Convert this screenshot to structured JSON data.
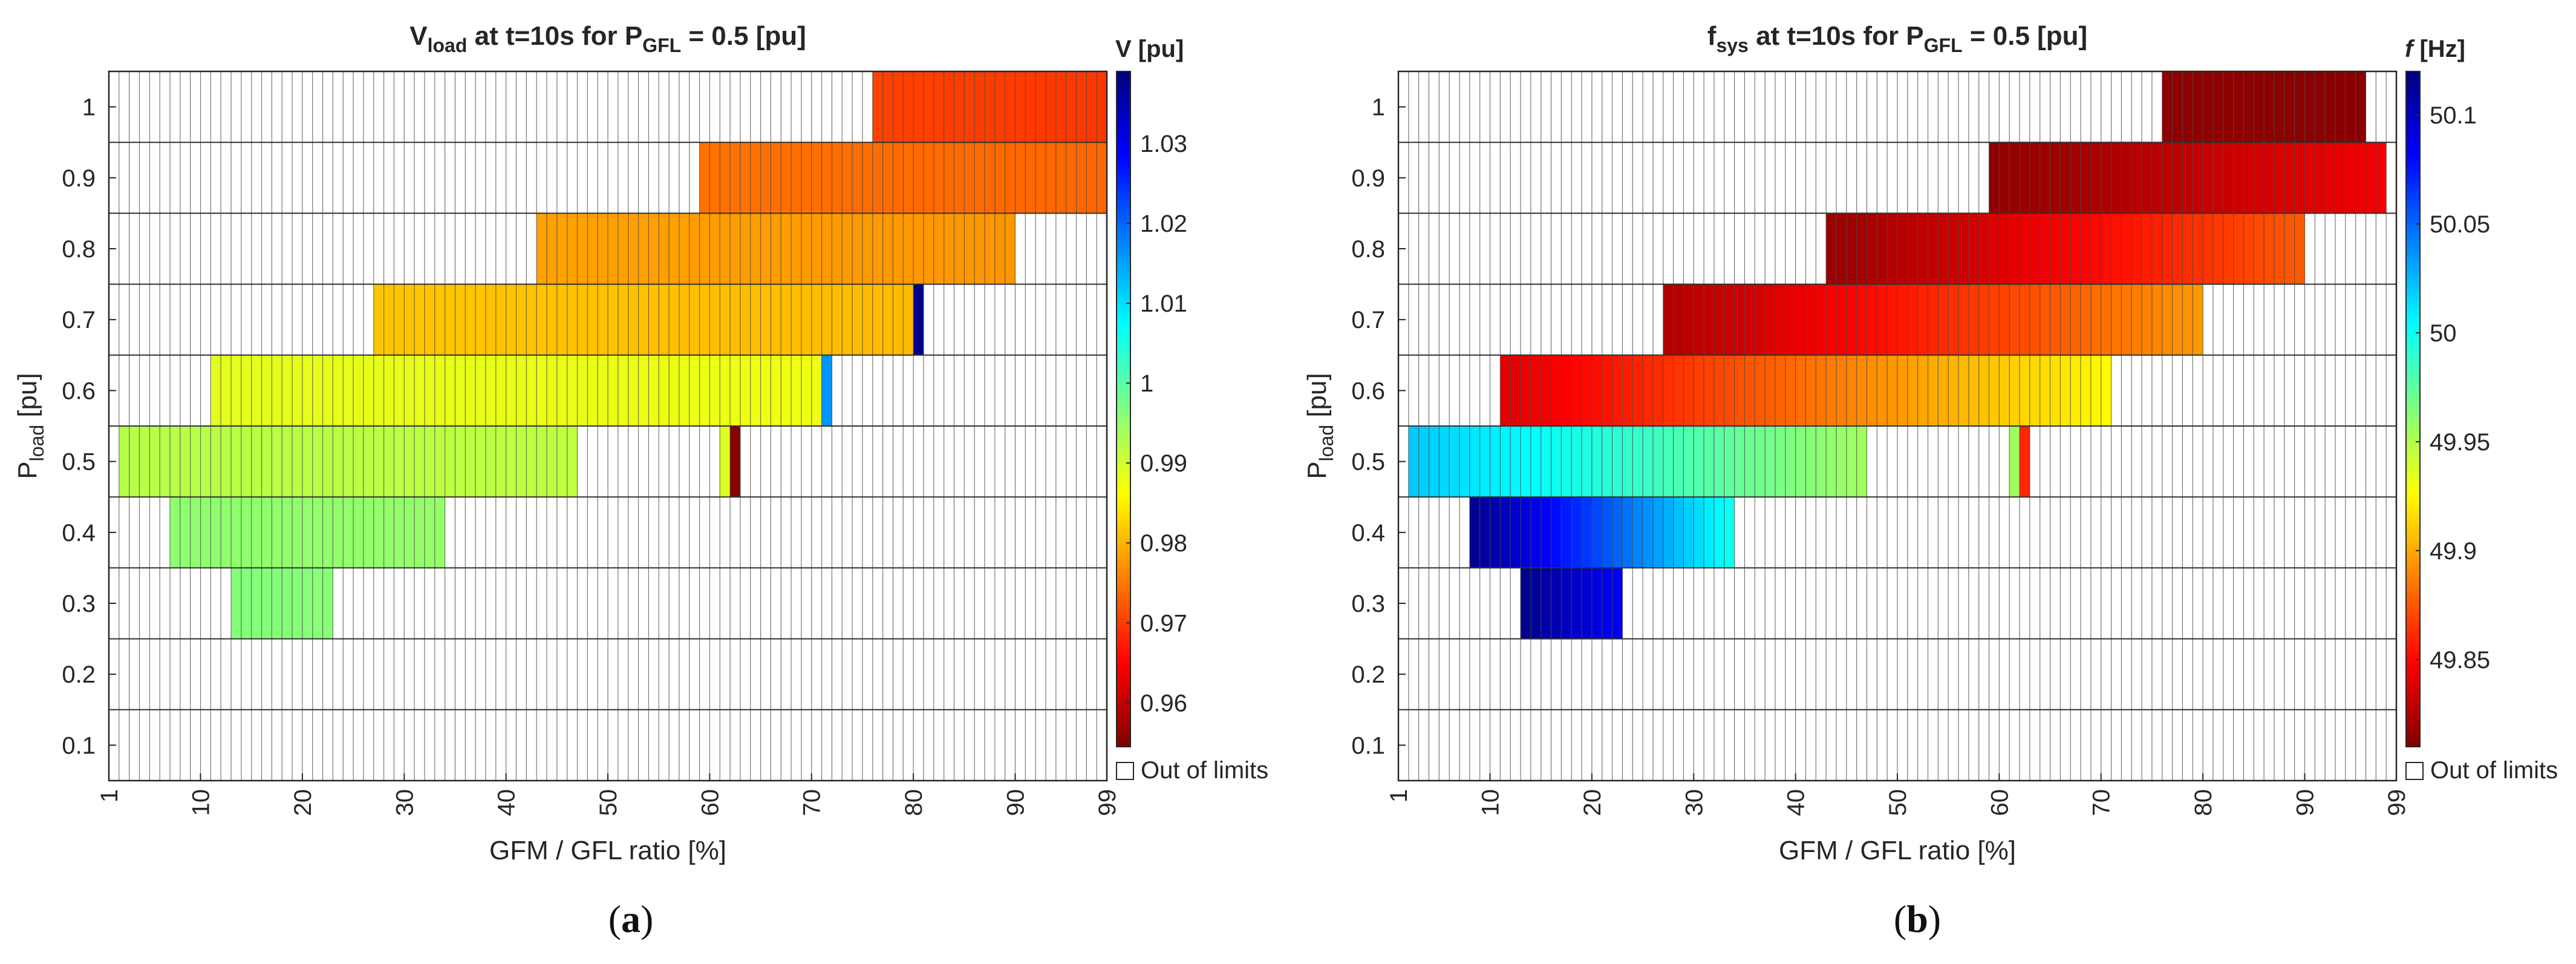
{
  "chart_data": [
    {
      "type": "heatmap",
      "panel": "(a)",
      "panel_letter": "a",
      "title_base": "V",
      "title_sub": "load",
      "title_mid": " at t=10s for P",
      "title_sub2": "GFL",
      "title_end": " = 0.5 [pu]",
      "xlabel": "GFM / GFL ratio [%]",
      "ylabel_base": "P",
      "ylabel_sub": "load",
      "ylabel_end": " [pu]",
      "x_ticks": [
        1,
        10,
        20,
        30,
        40,
        50,
        60,
        70,
        80,
        90,
        99
      ],
      "x_range": [
        1,
        99
      ],
      "y_ticks": [
        "0.1",
        "0.2",
        "0.3",
        "0.4",
        "0.5",
        "0.6",
        "0.7",
        "0.8",
        "0.9",
        "1"
      ],
      "y_levels": [
        0.1,
        0.2,
        0.3,
        0.4,
        0.5,
        0.6,
        0.7,
        0.8,
        0.9,
        1.0
      ],
      "colorbar": {
        "label": "V [pu]",
        "label_italic": false,
        "colormap": "jet-reversed",
        "range": [
          0.9545,
          1.039
        ],
        "ticks": [
          "0.96",
          "0.97",
          "0.98",
          "0.99",
          "1",
          "1.01",
          "1.02",
          "1.03"
        ],
        "tick_values": [
          0.96,
          0.97,
          0.98,
          0.99,
          1.0,
          1.01,
          1.02,
          1.03
        ]
      },
      "out_of_limits_label": "Out of limits",
      "rows": [
        {
          "p_load": 1.0,
          "segments": [
            {
              "x_from": 76,
              "x_to": 99,
              "v_start": 0.9705,
              "v_end": 0.9695
            }
          ]
        },
        {
          "p_load": 0.9,
          "segments": [
            {
              "x_from": 59,
              "x_to": 99,
              "v_start": 0.9745,
              "v_end": 0.9735
            }
          ]
        },
        {
          "p_load": 0.8,
          "segments": [
            {
              "x_from": 43,
              "x_to": 90,
              "v_start": 0.9785,
              "v_end": 0.9775
            }
          ]
        },
        {
          "p_load": 0.7,
          "segments": [
            {
              "x_from": 27,
              "x_to": 80,
              "v_start": 0.9815,
              "v_end": 0.9805
            },
            {
              "x_from": 80,
              "x_to": 81,
              "v_start": 1.038,
              "v_end": 1.038
            }
          ]
        },
        {
          "p_load": 0.6,
          "segments": [
            {
              "x_from": 11,
              "x_to": 71,
              "v_start": 0.9885,
              "v_end": 0.9875
            },
            {
              "x_from": 71,
              "x_to": 72,
              "v_start": 1.016,
              "v_end": 1.016
            }
          ]
        },
        {
          "p_load": 0.5,
          "segments": [
            {
              "x_from": 2,
              "x_to": 47,
              "v_start": 0.9922,
              "v_end": 0.9915
            },
            {
              "x_from": 61,
              "x_to": 62,
              "v_start": 0.989,
              "v_end": 0.989
            },
            {
              "x_from": 62,
              "x_to": 63,
              "v_start": 0.955,
              "v_end": 0.955
            }
          ]
        },
        {
          "p_load": 0.4,
          "segments": [
            {
              "x_from": 7,
              "x_to": 34,
              "v_start": 0.9955,
              "v_end": 0.995
            }
          ]
        },
        {
          "p_load": 0.3,
          "segments": [
            {
              "x_from": 13,
              "x_to": 23,
              "v_start": 0.9965,
              "v_end": 0.996
            }
          ]
        }
      ]
    },
    {
      "type": "heatmap",
      "panel": "(b)",
      "panel_letter": "b",
      "title_base": "f",
      "title_sub": "sys",
      "title_mid": " at t=10s for P",
      "title_sub2": "GFL",
      "title_end": " = 0.5 [pu]",
      "xlabel": "GFM / GFL ratio [%]",
      "ylabel_base": "P",
      "ylabel_sub": "load",
      "ylabel_end": " [pu]",
      "x_ticks": [
        1,
        10,
        20,
        30,
        40,
        50,
        60,
        70,
        80,
        90,
        99
      ],
      "x_range": [
        1,
        99
      ],
      "y_ticks": [
        "0.1",
        "0.2",
        "0.3",
        "0.4",
        "0.5",
        "0.6",
        "0.7",
        "0.8",
        "0.9",
        "1"
      ],
      "y_levels": [
        0.1,
        0.2,
        0.3,
        0.4,
        0.5,
        0.6,
        0.7,
        0.8,
        0.9,
        1.0
      ],
      "colorbar": {
        "label": "f [Hz]",
        "label_italic": true,
        "label_italic_part": "f",
        "label_rest": " [Hz]",
        "colormap": "jet-reversed",
        "range": [
          49.81,
          50.12
        ],
        "ticks": [
          "49.85",
          "49.9",
          "49.95",
          "50",
          "50.05",
          "50.1"
        ],
        "tick_values": [
          49.85,
          49.9,
          49.95,
          50.0,
          50.05,
          50.1
        ]
      },
      "out_of_limits_label": "Out of limits",
      "rows": [
        {
          "p_load": 1.0,
          "segments": [
            {
              "x_from": 76,
              "x_to": 96,
              "v_start": 49.815,
              "v_end": 49.813
            }
          ]
        },
        {
          "p_load": 0.9,
          "segments": [
            {
              "x_from": 59,
              "x_to": 98,
              "v_start": 49.815,
              "v_end": 49.845
            }
          ]
        },
        {
          "p_load": 0.8,
          "segments": [
            {
              "x_from": 43,
              "x_to": 90,
              "v_start": 49.818,
              "v_end": 49.876
            }
          ]
        },
        {
          "p_load": 0.7,
          "segments": [
            {
              "x_from": 27,
              "x_to": 80,
              "v_start": 49.825,
              "v_end": 49.895
            }
          ]
        },
        {
          "p_load": 0.6,
          "segments": [
            {
              "x_from": 11,
              "x_to": 71,
              "v_start": 49.84,
              "v_end": 49.925
            }
          ]
        },
        {
          "p_load": 0.5,
          "segments": [
            {
              "x_from": 2,
              "x_to": 47,
              "v_start": 50.02,
              "v_end": 49.955
            },
            {
              "x_from": 61,
              "x_to": 62,
              "v_start": 49.955,
              "v_end": 49.955
            },
            {
              "x_from": 62,
              "x_to": 63,
              "v_start": 49.86,
              "v_end": 49.86
            }
          ]
        },
        {
          "p_load": 0.4,
          "segments": [
            {
              "x_from": 8,
              "x_to": 34,
              "v_start": 50.115,
              "v_end": 50.0
            }
          ]
        },
        {
          "p_load": 0.3,
          "segments": [
            {
              "x_from": 13,
              "x_to": 23,
              "v_start": 50.115,
              "v_end": 50.085
            }
          ]
        }
      ]
    }
  ]
}
